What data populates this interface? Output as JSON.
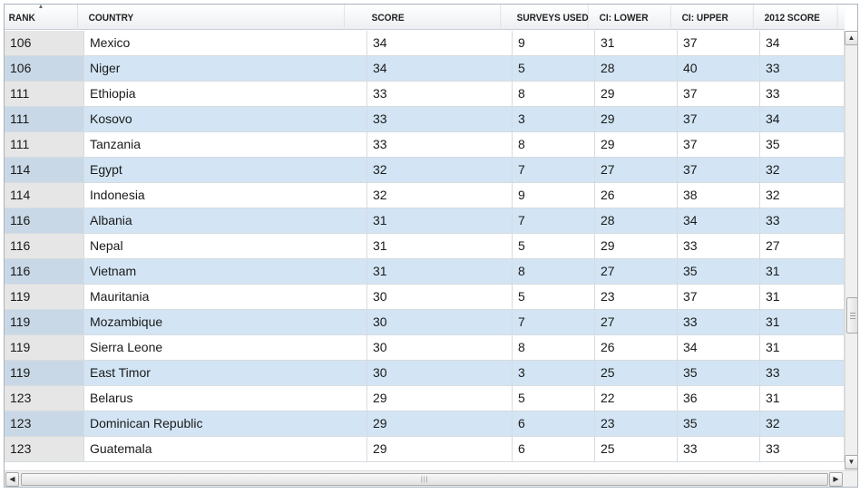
{
  "table": {
    "columns": [
      {
        "key": "rank",
        "label": "RANK"
      },
      {
        "key": "country",
        "label": "COUNTRY"
      },
      {
        "key": "score",
        "label": "SCORE"
      },
      {
        "key": "surveys",
        "label": "SURVEYS USED"
      },
      {
        "key": "ci_lower",
        "label": "CI: LOWER"
      },
      {
        "key": "ci_upper",
        "label": "CI: UPPER"
      },
      {
        "key": "score_2012",
        "label": "2012 SCORE"
      }
    ],
    "sort": {
      "column": "rank",
      "direction": "ascending",
      "icon": "sort-ascending-icon"
    },
    "rows": [
      {
        "rank": "106",
        "country": "Mexico",
        "score": "34",
        "surveys": "9",
        "ci_lower": "31",
        "ci_upper": "37",
        "score_2012": "34"
      },
      {
        "rank": "106",
        "country": "Niger",
        "score": "34",
        "surveys": "5",
        "ci_lower": "28",
        "ci_upper": "40",
        "score_2012": "33"
      },
      {
        "rank": "111",
        "country": "Ethiopia",
        "score": "33",
        "surveys": "8",
        "ci_lower": "29",
        "ci_upper": "37",
        "score_2012": "33"
      },
      {
        "rank": "111",
        "country": "Kosovo",
        "score": "33",
        "surveys": "3",
        "ci_lower": "29",
        "ci_upper": "37",
        "score_2012": "34"
      },
      {
        "rank": "111",
        "country": "Tanzania",
        "score": "33",
        "surveys": "8",
        "ci_lower": "29",
        "ci_upper": "37",
        "score_2012": "35"
      },
      {
        "rank": "114",
        "country": "Egypt",
        "score": "32",
        "surveys": "7",
        "ci_lower": "27",
        "ci_upper": "37",
        "score_2012": "32"
      },
      {
        "rank": "114",
        "country": "Indonesia",
        "score": "32",
        "surveys": "9",
        "ci_lower": "26",
        "ci_upper": "38",
        "score_2012": "32"
      },
      {
        "rank": "116",
        "country": "Albania",
        "score": "31",
        "surveys": "7",
        "ci_lower": "28",
        "ci_upper": "34",
        "score_2012": "33"
      },
      {
        "rank": "116",
        "country": "Nepal",
        "score": "31",
        "surveys": "5",
        "ci_lower": "29",
        "ci_upper": "33",
        "score_2012": "27"
      },
      {
        "rank": "116",
        "country": "Vietnam",
        "score": "31",
        "surveys": "8",
        "ci_lower": "27",
        "ci_upper": "35",
        "score_2012": "31"
      },
      {
        "rank": "119",
        "country": "Mauritania",
        "score": "30",
        "surveys": "5",
        "ci_lower": "23",
        "ci_upper": "37",
        "score_2012": "31"
      },
      {
        "rank": "119",
        "country": "Mozambique",
        "score": "30",
        "surveys": "7",
        "ci_lower": "27",
        "ci_upper": "33",
        "score_2012": "31"
      },
      {
        "rank": "119",
        "country": "Sierra Leone",
        "score": "30",
        "surveys": "8",
        "ci_lower": "26",
        "ci_upper": "34",
        "score_2012": "31"
      },
      {
        "rank": "119",
        "country": "East Timor",
        "score": "30",
        "surveys": "3",
        "ci_lower": "25",
        "ci_upper": "35",
        "score_2012": "33"
      },
      {
        "rank": "123",
        "country": "Belarus",
        "score": "29",
        "surveys": "5",
        "ci_lower": "22",
        "ci_upper": "36",
        "score_2012": "31"
      },
      {
        "rank": "123",
        "country": "Dominican Republic",
        "score": "29",
        "surveys": "6",
        "ci_lower": "23",
        "ci_upper": "35",
        "score_2012": "32"
      },
      {
        "rank": "123",
        "country": "Guatemala",
        "score": "29",
        "surveys": "6",
        "ci_lower": "25",
        "ci_upper": "33",
        "score_2012": "33"
      }
    ]
  },
  "scrollbars": {
    "vertical": {
      "up_icon": "arrow-up-icon",
      "down_icon": "arrow-down-icon",
      "up_glyph": "▲",
      "down_glyph": "▼"
    },
    "horizontal": {
      "left_icon": "arrow-left-icon",
      "right_icon": "arrow-right-icon",
      "left_glyph": "◀",
      "right_glyph": "▶",
      "grip_glyph": "|||"
    }
  },
  "colors": {
    "row_alt": "#d3e5f4",
    "rank_bg": "#e6e6e6",
    "header_bg": "#eceff2"
  }
}
